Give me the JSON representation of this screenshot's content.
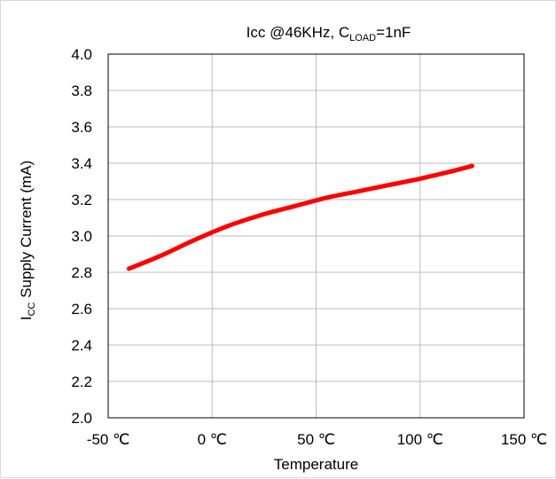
{
  "chart_data": {
    "type": "line",
    "title_parts": {
      "prefix": "Icc @46KHz, C",
      "subscript": "LOAD",
      "suffix": "=1nF"
    },
    "ylabel_parts": {
      "prefix": "I",
      "subscript": "CC",
      "suffix": " Supply Current (mA)"
    },
    "xlabel": "Temperature",
    "xlim": [
      -50,
      150
    ],
    "ylim": [
      2.0,
      4.0
    ],
    "x_ticks": [
      -50,
      0,
      50,
      100,
      150
    ],
    "x_tick_labels": [
      "-50 ℃",
      "0 ℃",
      "50 ℃",
      "100 ℃",
      "150 ℃"
    ],
    "y_ticks": [
      2.0,
      2.2,
      2.4,
      2.6,
      2.8,
      3.0,
      3.2,
      3.4,
      3.6,
      3.8,
      4.0
    ],
    "y_tick_labels": [
      "2.0",
      "2.2",
      "2.4",
      "2.6",
      "2.8",
      "3.0",
      "3.2",
      "3.4",
      "3.6",
      "3.8",
      "4.0"
    ],
    "grid": true,
    "legend": false,
    "series": [
      {
        "color": "#ff0000",
        "x": [
          -40,
          -25,
          -10,
          0,
          10,
          25,
          40,
          55,
          70,
          85,
          100,
          115,
          125
        ],
        "y": [
          2.82,
          2.89,
          2.97,
          3.02,
          3.065,
          3.12,
          3.165,
          3.21,
          3.245,
          3.28,
          3.315,
          3.355,
          3.385
        ]
      }
    ]
  }
}
